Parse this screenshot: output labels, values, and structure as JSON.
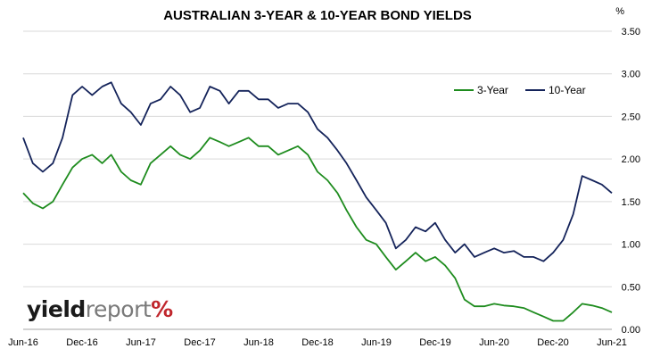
{
  "chart_data": {
    "type": "line",
    "title": "AUSTRALIAN 3-YEAR & 10-YEAR BOND YIELDS",
    "y_unit_label": "%",
    "ylim": [
      0,
      3.5
    ],
    "y_ticks": [
      "0.00",
      "0.50",
      "1.00",
      "1.50",
      "2.00",
      "2.50",
      "3.00",
      "3.50"
    ],
    "x_ticks": [
      "Jun-16",
      "Dec-16",
      "Jun-17",
      "Dec-17",
      "Jun-18",
      "Dec-18",
      "Jun-19",
      "Dec-19",
      "Jun-20",
      "Dec-20",
      "Jun-21"
    ],
    "grid": "horizontal",
    "legend_position": "top-right",
    "series": [
      {
        "name": "3-Year",
        "color": "#1e8c1e",
        "x": [
          "2016-06",
          "2016-07",
          "2016-08",
          "2016-09",
          "2016-10",
          "2016-11",
          "2016-12",
          "2017-01",
          "2017-02",
          "2017-03",
          "2017-04",
          "2017-05",
          "2017-06",
          "2017-07",
          "2017-08",
          "2017-09",
          "2017-10",
          "2017-11",
          "2017-12",
          "2018-01",
          "2018-02",
          "2018-03",
          "2018-04",
          "2018-05",
          "2018-06",
          "2018-07",
          "2018-08",
          "2018-09",
          "2018-10",
          "2018-11",
          "2018-12",
          "2019-01",
          "2019-02",
          "2019-03",
          "2019-04",
          "2019-05",
          "2019-06",
          "2019-07",
          "2019-08",
          "2019-09",
          "2019-10",
          "2019-11",
          "2019-12",
          "2020-01",
          "2020-02",
          "2020-03",
          "2020-04",
          "2020-05",
          "2020-06",
          "2020-07",
          "2020-08",
          "2020-09",
          "2020-10",
          "2020-11",
          "2020-12",
          "2021-01",
          "2021-02",
          "2021-03",
          "2021-04",
          "2021-05",
          "2021-06"
        ],
        "values": [
          1.6,
          1.48,
          1.42,
          1.5,
          1.7,
          1.9,
          2.0,
          2.05,
          1.95,
          2.05,
          1.85,
          1.75,
          1.7,
          1.95,
          2.05,
          2.15,
          2.05,
          2.0,
          2.1,
          2.25,
          2.2,
          2.15,
          2.2,
          2.25,
          2.15,
          2.15,
          2.05,
          2.1,
          2.15,
          2.05,
          1.85,
          1.75,
          1.6,
          1.4,
          1.2,
          1.05,
          1.0,
          0.85,
          0.7,
          0.8,
          0.9,
          0.8,
          0.85,
          0.75,
          0.6,
          0.35,
          0.27,
          0.27,
          0.3,
          0.28,
          0.27,
          0.25,
          0.2,
          0.15,
          0.1,
          0.1,
          0.2,
          0.3,
          0.28,
          0.25,
          0.2
        ]
      },
      {
        "name": "10-Year",
        "color": "#14235a",
        "x": [
          "2016-06",
          "2016-07",
          "2016-08",
          "2016-09",
          "2016-10",
          "2016-11",
          "2016-12",
          "2017-01",
          "2017-02",
          "2017-03",
          "2017-04",
          "2017-05",
          "2017-06",
          "2017-07",
          "2017-08",
          "2017-09",
          "2017-10",
          "2017-11",
          "2017-12",
          "2018-01",
          "2018-02",
          "2018-03",
          "2018-04",
          "2018-05",
          "2018-06",
          "2018-07",
          "2018-08",
          "2018-09",
          "2018-10",
          "2018-11",
          "2018-12",
          "2019-01",
          "2019-02",
          "2019-03",
          "2019-04",
          "2019-05",
          "2019-06",
          "2019-07",
          "2019-08",
          "2019-09",
          "2019-10",
          "2019-11",
          "2019-12",
          "2020-01",
          "2020-02",
          "2020-03",
          "2020-04",
          "2020-05",
          "2020-06",
          "2020-07",
          "2020-08",
          "2020-09",
          "2020-10",
          "2020-11",
          "2020-12",
          "2021-01",
          "2021-02",
          "2021-03",
          "2021-04",
          "2021-05",
          "2021-06"
        ],
        "values": [
          2.25,
          1.95,
          1.85,
          1.95,
          2.25,
          2.75,
          2.85,
          2.75,
          2.85,
          2.9,
          2.65,
          2.55,
          2.4,
          2.65,
          2.7,
          2.85,
          2.75,
          2.55,
          2.6,
          2.85,
          2.8,
          2.65,
          2.8,
          2.8,
          2.7,
          2.7,
          2.6,
          2.65,
          2.65,
          2.55,
          2.35,
          2.25,
          2.1,
          1.95,
          1.75,
          1.55,
          1.4,
          1.25,
          0.95,
          1.05,
          1.2,
          1.15,
          1.25,
          1.05,
          0.9,
          1.0,
          0.85,
          0.9,
          0.95,
          0.9,
          0.92,
          0.85,
          0.85,
          0.8,
          0.9,
          1.05,
          1.35,
          1.8,
          1.75,
          1.7,
          1.6
        ]
      }
    ]
  },
  "logo": {
    "part1": "yield",
    "part2": "report",
    "part3": "%"
  }
}
